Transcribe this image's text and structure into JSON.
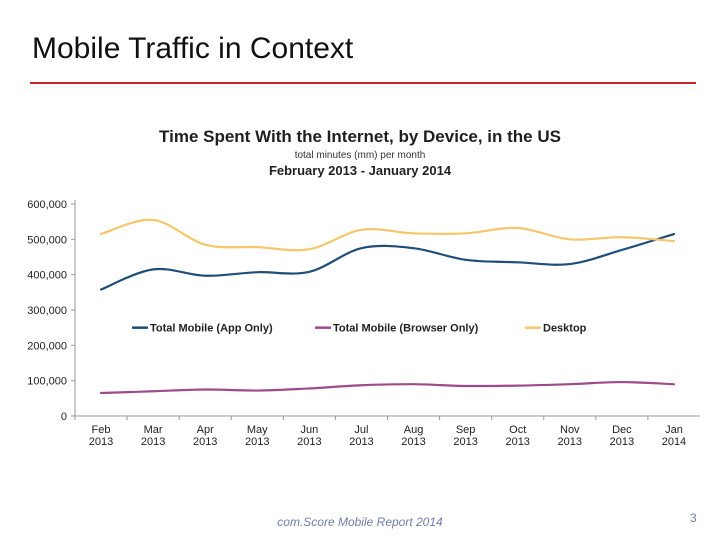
{
  "slide": {
    "title": "Mobile Traffic in Context",
    "footer": "com.Score Mobile Report 2014",
    "page_number": "3",
    "accent_color": "#c0272d"
  },
  "chart_data": {
    "type": "line",
    "title": "Time Spent With the Internet, by Device, in the US",
    "subtitle": "total minutes (mm) per month",
    "period": "February 2013 - January 2014",
    "categories": [
      [
        "Feb",
        "2013"
      ],
      [
        "Mar",
        "2013"
      ],
      [
        "Apr",
        "2013"
      ],
      [
        "May",
        "2013"
      ],
      [
        "Jun",
        "2013"
      ],
      [
        "Jul",
        "2013"
      ],
      [
        "Aug",
        "2013"
      ],
      [
        "Sep",
        "2013"
      ],
      [
        "Oct",
        "2013"
      ],
      [
        "Nov",
        "2013"
      ],
      [
        "Dec",
        "2013"
      ],
      [
        "Jan",
        "2014"
      ]
    ],
    "yticks": [
      "0",
      "100,000",
      "200,000",
      "300,000",
      "400,000",
      "500,000",
      "600,000"
    ],
    "ylim": [
      0,
      600000
    ],
    "legend_position": "middle",
    "grid": false,
    "series": [
      {
        "name": "Total Mobile (App Only)",
        "color": "#1f4e79",
        "values": [
          358000,
          415000,
          397000,
          407000,
          408000,
          475000,
          475000,
          442000,
          435000,
          430000,
          470000,
          515000
        ]
      },
      {
        "name": "Total Mobile (Browser Only)",
        "color": "#9e4b8b",
        "values": [
          65000,
          70000,
          75000,
          72000,
          78000,
          87000,
          90000,
          85000,
          86000,
          90000,
          96000,
          90000
        ]
      },
      {
        "name": "Desktop",
        "color": "#f5c76a",
        "values": [
          515000,
          555000,
          485000,
          478000,
          472000,
          527000,
          517000,
          517000,
          532000,
          500000,
          506000,
          495000
        ]
      }
    ]
  }
}
